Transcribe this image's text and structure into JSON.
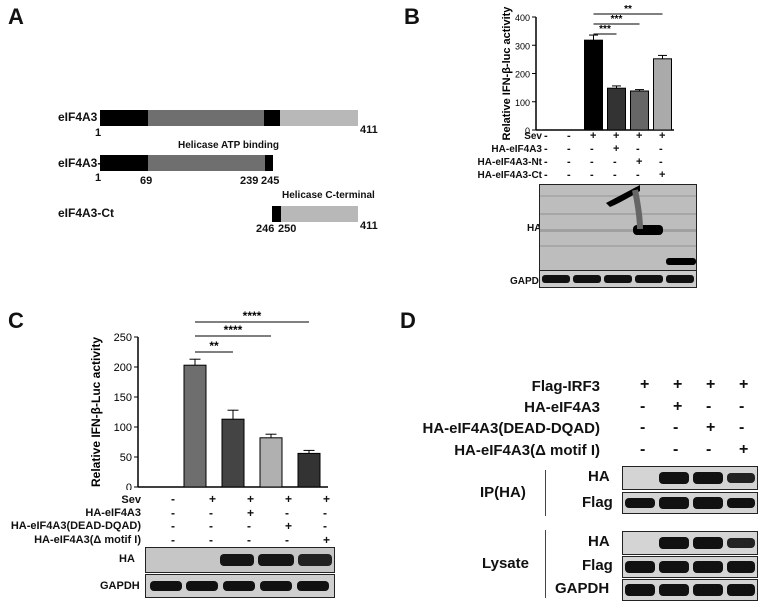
{
  "panels": {
    "A": "A",
    "B": "B",
    "C": "C",
    "D": "D"
  },
  "panelA": {
    "rows": [
      {
        "name": "eIF4A3",
        "start": "1",
        "end": "411"
      },
      {
        "name": "eIF4A3-Nt",
        "start": "1",
        "mid1": "69",
        "mid2": "239",
        "mid3": "245",
        "annotation": "Helicase ATP binding"
      },
      {
        "name": "eIF4A3-Ct",
        "start": "246",
        "mid": "250",
        "end": "411",
        "annotation": "Helicase C-terminal"
      }
    ]
  },
  "chart_data": [
    {
      "id": "B",
      "type": "bar",
      "ylabel": "Relative IFN-β-luc activity",
      "ylim": [
        0,
        400
      ],
      "yticks": [
        "0",
        "100",
        "200",
        "300",
        "400"
      ],
      "values": [
        0,
        0,
        318,
        148,
        138,
        252
      ],
      "errors": [
        0,
        0,
        18,
        8,
        5,
        12
      ],
      "colors": [
        "#ffffff",
        "#ffffff",
        "#000000",
        "#333333",
        "#666666",
        "#aaaaaa"
      ],
      "significance": [
        "***",
        "***",
        "**"
      ],
      "conditions": [
        {
          "label": "Sev",
          "marks": [
            "-",
            "-",
            "+",
            "+",
            "+",
            "+"
          ]
        },
        {
          "label": "HA-eIF4A3",
          "marks": [
            "-",
            "-",
            "-",
            "+",
            "-",
            "-"
          ]
        },
        {
          "label": "HA-eIF4A3-Nt",
          "marks": [
            "-",
            "-",
            "-",
            "-",
            "+",
            "-"
          ]
        },
        {
          "label": "HA-eIF4A3-Ct",
          "marks": [
            "-",
            "-",
            "-",
            "-",
            "-",
            "+"
          ]
        }
      ],
      "blots": [
        "HA",
        "GAPDH"
      ]
    },
    {
      "id": "C",
      "type": "bar",
      "ylabel": "Relative IFN-β-Luc activity",
      "ylim": [
        0,
        250
      ],
      "yticks": [
        "0",
        "50",
        "100",
        "150",
        "200",
        "250"
      ],
      "values": [
        0,
        203,
        113,
        82,
        56
      ],
      "errors": [
        0,
        10,
        15,
        6,
        5
      ],
      "colors": [
        "#ffffff",
        "#6e6e6e",
        "#444444",
        "#b0b0b0",
        "#333333"
      ],
      "significance": [
        "**",
        "****",
        "****"
      ],
      "conditions": [
        {
          "label": "Sev",
          "marks": [
            "-",
            "+",
            "+",
            "+",
            "+"
          ]
        },
        {
          "label": "HA-eIF4A3",
          "marks": [
            "-",
            "-",
            "+",
            "-",
            "-"
          ]
        },
        {
          "label": "HA-eIF4A3(DEAD-DQAD)",
          "marks": [
            "-",
            "-",
            "-",
            "+",
            "-"
          ]
        },
        {
          "label": "HA-eIF4A3(Δ motif I)",
          "marks": [
            "-",
            "-",
            "-",
            "-",
            "+"
          ]
        }
      ],
      "blots": [
        "HA",
        "GAPDH"
      ]
    }
  ],
  "panelD": {
    "conditions": [
      {
        "label": "Flag-IRF3",
        "marks": [
          "+",
          "+",
          "+",
          "+"
        ]
      },
      {
        "label": "HA-eIF4A3",
        "marks": [
          "-",
          "+",
          "-",
          "-"
        ]
      },
      {
        "label": "HA-eIF4A3(DEAD-DQAD)",
        "marks": [
          "-",
          "-",
          "+",
          "-"
        ]
      },
      {
        "label": "HA-eIF4A3(Δ motif I)",
        "marks": [
          "-",
          "-",
          "-",
          "+"
        ]
      }
    ],
    "ip_label": "IP(HA)",
    "lysate_label": "Lysate",
    "ip_blots": [
      "HA",
      "Flag"
    ],
    "lysate_blots": [
      "HA",
      "Flag",
      "GAPDH"
    ]
  }
}
